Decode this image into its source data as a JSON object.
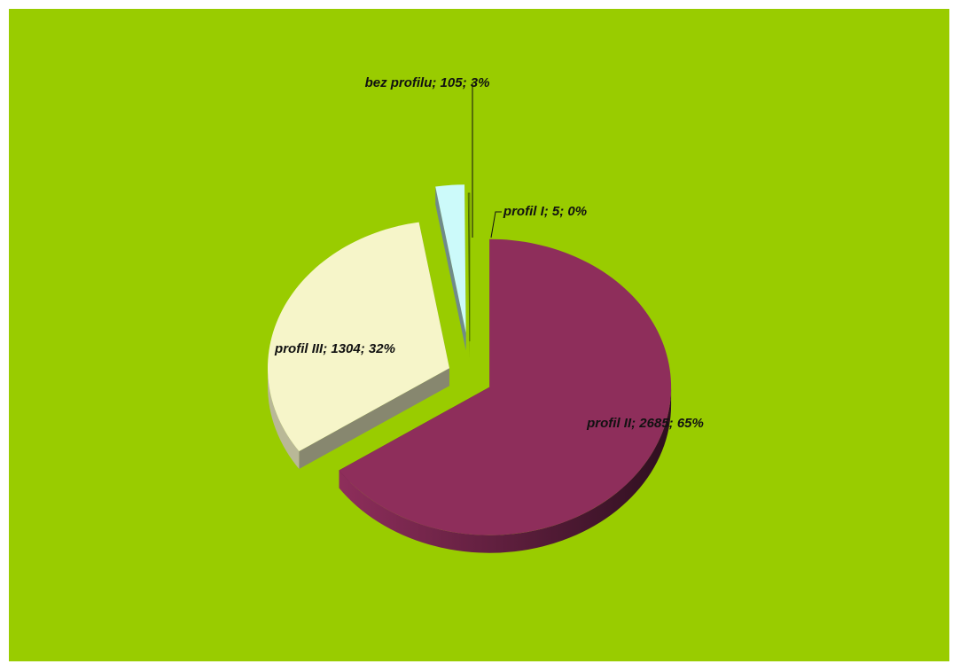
{
  "chart_data": {
    "type": "pie",
    "title": "",
    "three_d": true,
    "exploded": true,
    "background_color": "#99cc00",
    "slices": [
      {
        "name": "profil II",
        "value": 2685,
        "percent": 65,
        "label": "profil II; 2685; 65%",
        "color": "#8e2e5b"
      },
      {
        "name": "profil III",
        "value": 1304,
        "percent": 32,
        "label": "profil III; 1304; 32%",
        "color": "#f6f5c9"
      },
      {
        "name": "bez profilu",
        "value": 105,
        "percent": 3,
        "label": "bez profilu; 105; 3%",
        "color": "#ccfafa"
      },
      {
        "name": "profil I",
        "value": 5,
        "percent": 0,
        "label": "profil I; 5; 0%",
        "color": "#99cc00"
      }
    ]
  }
}
